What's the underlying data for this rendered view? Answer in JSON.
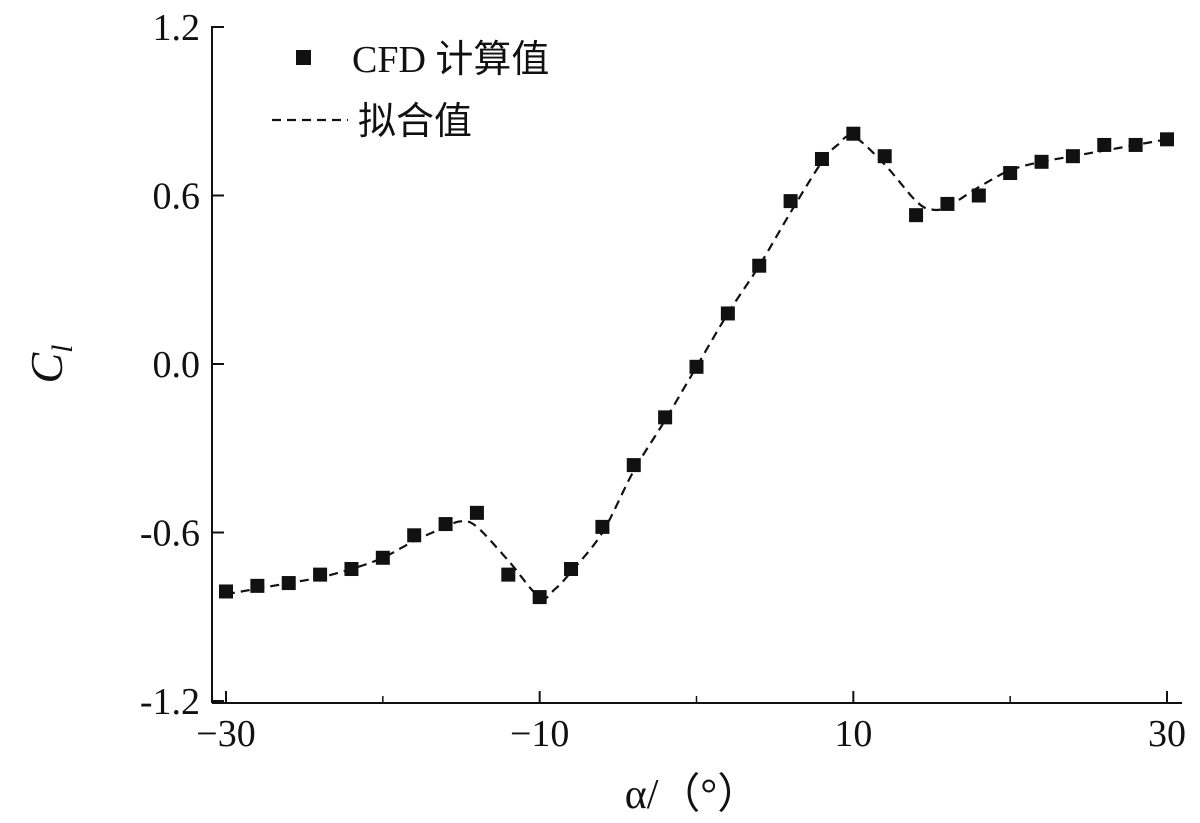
{
  "chart_data": {
    "type": "scatter",
    "title": "",
    "xlabel": "α/（°）",
    "ylabel": "C",
    "ylabel_subscript": "l",
    "xlim": [
      -31,
      31
    ],
    "ylim": [
      -1.2,
      1.2
    ],
    "xticks": [
      -30,
      -10,
      10,
      30
    ],
    "xtick_labels": [
      "−30",
      "−10",
      "10",
      "30"
    ],
    "yticks": [
      1.2,
      0.6,
      0.0,
      -0.6,
      -1.2
    ],
    "ytick_labels": [
      "1.2",
      "0.6",
      "0.0",
      "-0.6",
      "-1.2"
    ],
    "grid": false,
    "legend_position": "top-left",
    "series": [
      {
        "name": "CFD 计算值",
        "style": "square-markers",
        "color": "#111111",
        "x": [
          -30,
          -28,
          -26,
          -24,
          -22,
          -20,
          -18,
          -16,
          -14,
          -12,
          -10,
          -8,
          -6,
          -4,
          -2,
          0,
          2,
          4,
          6,
          8,
          10,
          12,
          14,
          16,
          18,
          20,
          22,
          24,
          26,
          28,
          30
        ],
        "y": [
          -0.81,
          -0.79,
          -0.78,
          -0.75,
          -0.73,
          -0.69,
          -0.61,
          -0.57,
          -0.53,
          -0.75,
          -0.83,
          -0.73,
          -0.58,
          -0.36,
          -0.19,
          -0.01,
          0.18,
          0.35,
          0.58,
          0.73,
          0.82,
          0.74,
          0.53,
          0.57,
          0.6,
          0.68,
          0.72,
          0.74,
          0.78,
          0.78,
          0.8
        ]
      },
      {
        "name": "拟合值",
        "style": "dashed-line",
        "color": "#111111",
        "x": [
          -30,
          -28,
          -26,
          -24,
          -22,
          -20,
          -18,
          -16,
          -15,
          -14,
          -12,
          -10,
          -9,
          -8,
          -6,
          -4,
          -2,
          0,
          2,
          4,
          6,
          8,
          9,
          10,
          12,
          14,
          15,
          16,
          18,
          20,
          22,
          24,
          26,
          28,
          30
        ],
        "y": [
          -0.82,
          -0.8,
          -0.78,
          -0.76,
          -0.73,
          -0.69,
          -0.63,
          -0.58,
          -0.56,
          -0.58,
          -0.7,
          -0.83,
          -0.8,
          -0.74,
          -0.6,
          -0.38,
          -0.2,
          -0.01,
          0.18,
          0.35,
          0.54,
          0.72,
          0.78,
          0.81,
          0.71,
          0.58,
          0.55,
          0.56,
          0.63,
          0.69,
          0.72,
          0.74,
          0.76,
          0.78,
          0.8
        ]
      }
    ]
  }
}
